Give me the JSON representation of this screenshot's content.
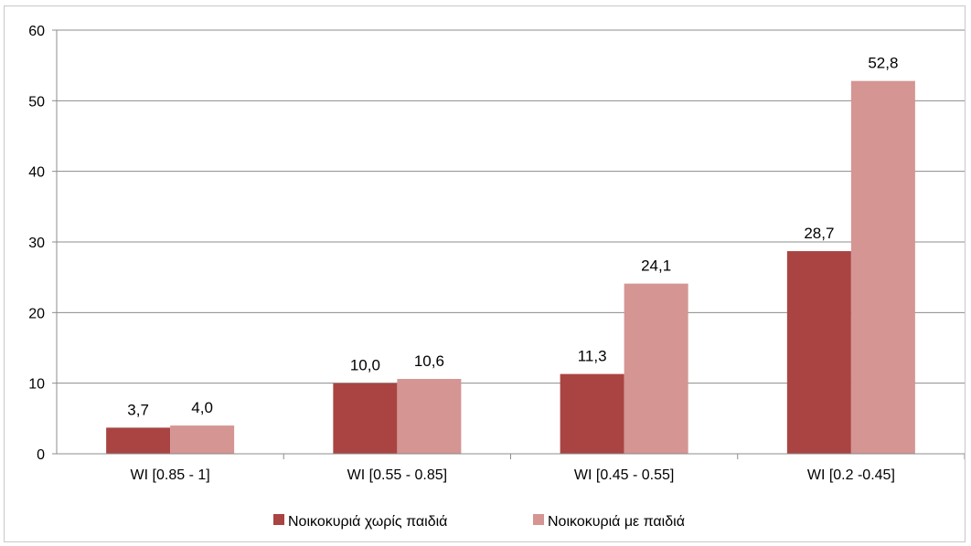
{
  "chart_data": {
    "type": "bar",
    "categories": [
      "WI [0.85 - 1]",
      "WI [0.55 - 0.85]",
      "WI [0.45 - 0.55]",
      "WI [0.2 -0.45]"
    ],
    "series": [
      {
        "name": "Νοικοκυριά χωρίς παιδιά",
        "color": "#a94442",
        "values": [
          3.7,
          10.0,
          11.3,
          28.7
        ],
        "labels": [
          "3,7",
          "10,0",
          "11,3",
          "28,7"
        ]
      },
      {
        "name": "Νοικοκυριά με παιδιά",
        "color": "#d49593",
        "values": [
          4.0,
          10.6,
          24.1,
          52.8
        ],
        "labels": [
          "4,0",
          "10,6",
          "24,1",
          "52,8"
        ]
      }
    ],
    "ylim": [
      0,
      60
    ],
    "yticks": [
      0,
      10,
      20,
      30,
      40,
      50,
      60
    ],
    "grid": true,
    "legend": "bottom"
  }
}
